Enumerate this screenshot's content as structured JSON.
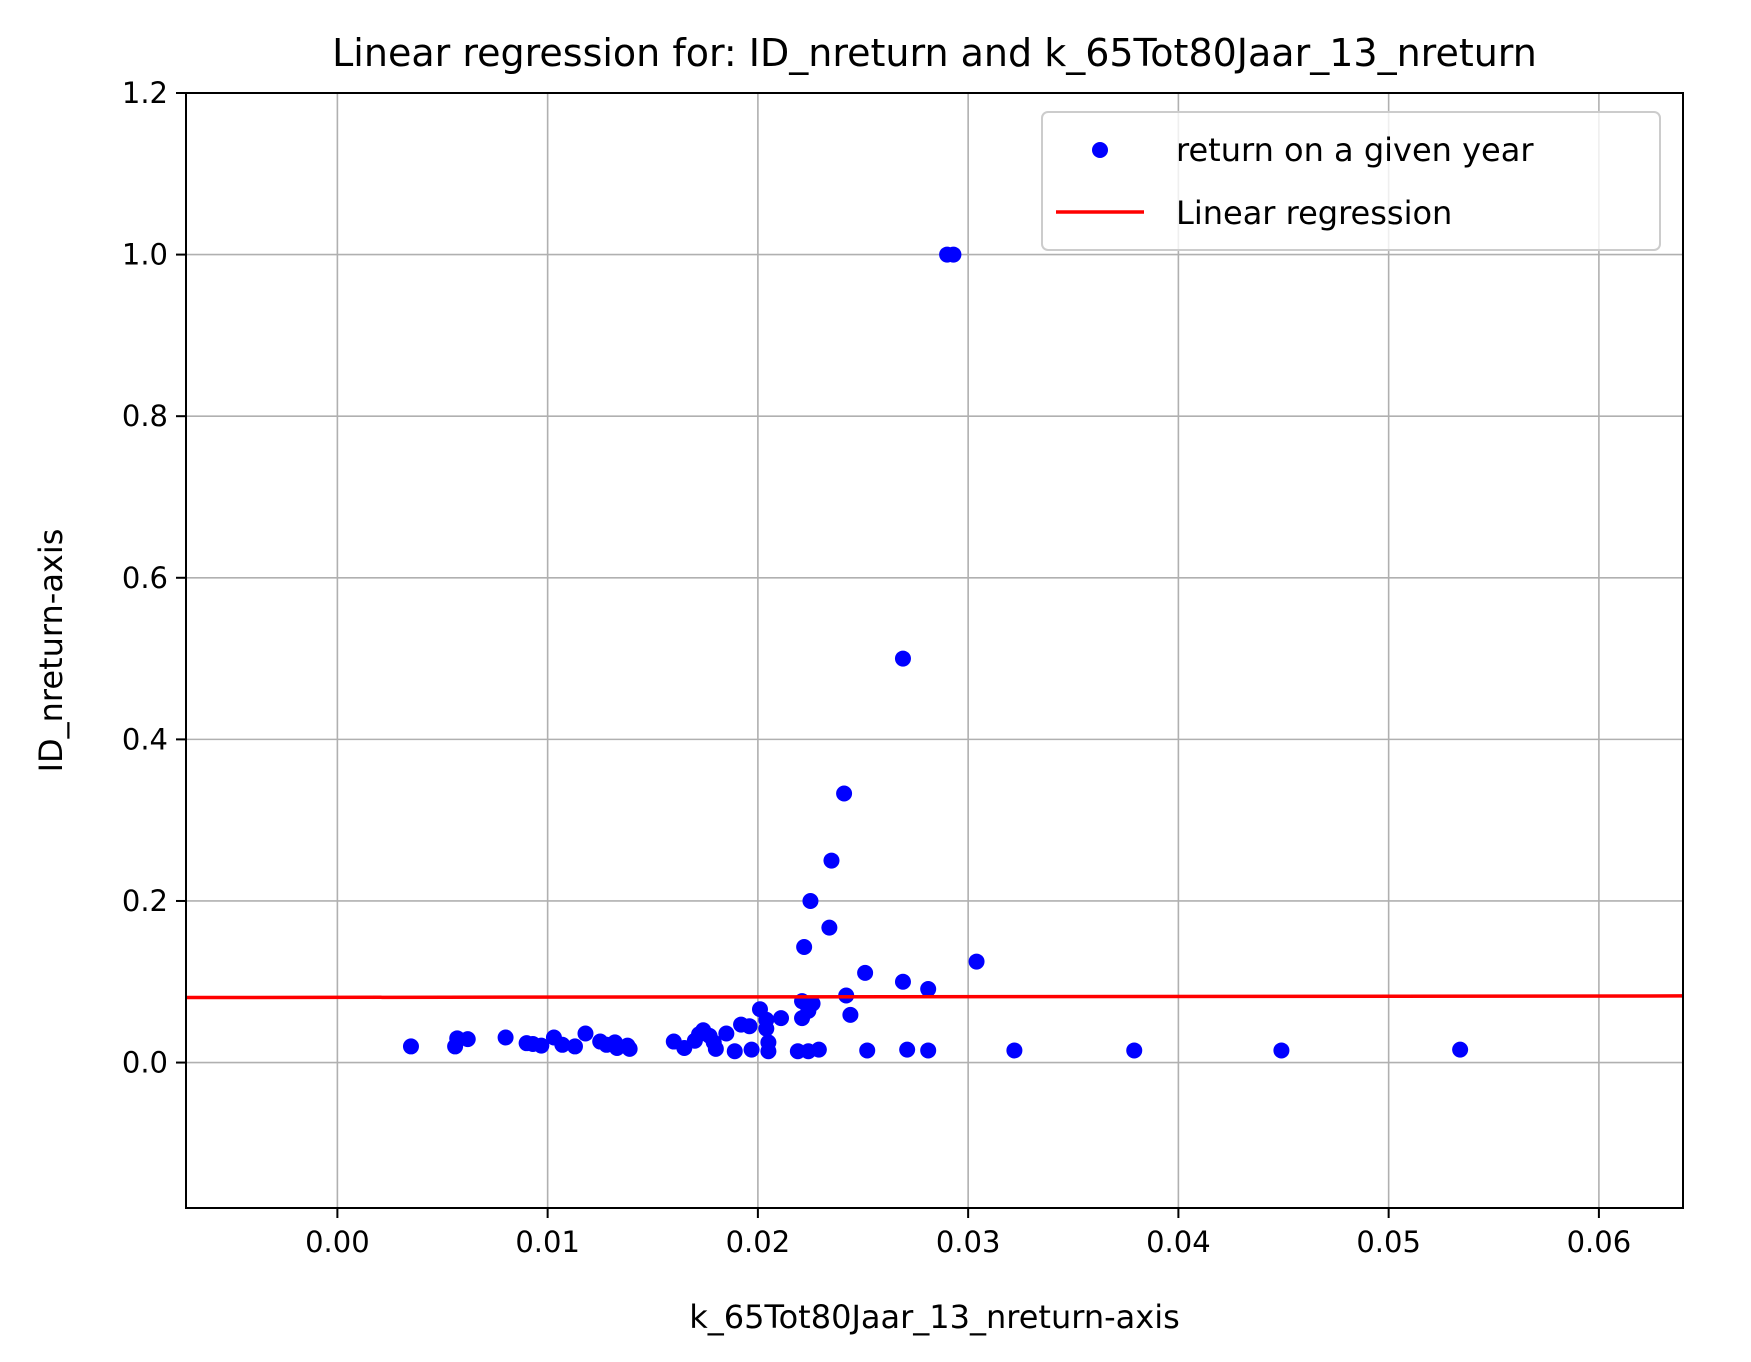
{
  "chart_data": {
    "type": "scatter",
    "title": "Linear regression for: ID_nreturn and k_65Tot80Jaar_13_nreturn",
    "xlabel": "k_65Tot80Jaar_13_nreturn-axis",
    "ylabel": "ID_nreturn-axis",
    "xlim": [
      -0.0072,
      0.064
    ],
    "ylim": [
      -0.18,
      1.2
    ],
    "x_ticks": [
      0.0,
      0.01,
      0.02,
      0.03,
      0.04,
      0.05,
      0.06
    ],
    "x_tick_labels": [
      "0.00",
      "0.01",
      "0.02",
      "0.03",
      "0.04",
      "0.05",
      "0.06"
    ],
    "y_ticks": [
      0.0,
      0.2,
      0.4,
      0.6,
      0.8,
      1.0,
      1.2
    ],
    "y_tick_labels": [
      "0.0",
      "0.2",
      "0.4",
      "0.6",
      "0.8",
      "1.0",
      "1.2"
    ],
    "grid": true,
    "legend_position": "top-right",
    "series": [
      {
        "name": "return on a given year",
        "kind": "scatter",
        "color": "#0000ff",
        "points": [
          [
            0.0035,
            0.02
          ],
          [
            0.0056,
            0.02
          ],
          [
            0.0057,
            0.03
          ],
          [
            0.0062,
            0.029
          ],
          [
            0.008,
            0.031
          ],
          [
            0.009,
            0.024
          ],
          [
            0.0093,
            0.023
          ],
          [
            0.0097,
            0.021
          ],
          [
            0.0103,
            0.031
          ],
          [
            0.0107,
            0.022
          ],
          [
            0.0113,
            0.02
          ],
          [
            0.0118,
            0.036
          ],
          [
            0.0125,
            0.026
          ],
          [
            0.0128,
            0.022
          ],
          [
            0.0132,
            0.025
          ],
          [
            0.0133,
            0.018
          ],
          [
            0.0138,
            0.021
          ],
          [
            0.0139,
            0.017
          ],
          [
            0.016,
            0.026
          ],
          [
            0.0165,
            0.018
          ],
          [
            0.017,
            0.027
          ],
          [
            0.0172,
            0.035
          ],
          [
            0.0174,
            0.04
          ],
          [
            0.0177,
            0.033
          ],
          [
            0.0179,
            0.025
          ],
          [
            0.018,
            0.017
          ],
          [
            0.0185,
            0.036
          ],
          [
            0.0189,
            0.014
          ],
          [
            0.0192,
            0.047
          ],
          [
            0.0196,
            0.045
          ],
          [
            0.0197,
            0.016
          ],
          [
            0.0201,
            0.066
          ],
          [
            0.0204,
            0.053
          ],
          [
            0.0204,
            0.042
          ],
          [
            0.0205,
            0.025
          ],
          [
            0.0205,
            0.014
          ],
          [
            0.0211,
            0.055
          ],
          [
            0.0219,
            0.014
          ],
          [
            0.0221,
            0.076
          ],
          [
            0.0221,
            0.055
          ],
          [
            0.0222,
            0.143
          ],
          [
            0.0224,
            0.064
          ],
          [
            0.0224,
            0.014
          ],
          [
            0.0225,
            0.2
          ],
          [
            0.0226,
            0.073
          ],
          [
            0.0229,
            0.016
          ],
          [
            0.0234,
            0.167
          ],
          [
            0.0235,
            0.25
          ],
          [
            0.0241,
            0.333
          ],
          [
            0.0242,
            0.083
          ],
          [
            0.0244,
            0.059
          ],
          [
            0.0251,
            0.111
          ],
          [
            0.0252,
            0.015
          ],
          [
            0.0269,
            0.1
          ],
          [
            0.0269,
            0.5
          ],
          [
            0.0271,
            0.016
          ],
          [
            0.0281,
            0.091
          ],
          [
            0.0281,
            0.015
          ],
          [
            0.029,
            1.0
          ],
          [
            0.0293,
            1.0
          ],
          [
            0.0304,
            0.125
          ],
          [
            0.0322,
            0.015
          ],
          [
            0.0379,
            0.015
          ],
          [
            0.0449,
            0.015
          ],
          [
            0.0534,
            0.016
          ]
        ]
      },
      {
        "name": "Linear regression",
        "kind": "line",
        "color": "#ff0000",
        "points": [
          [
            -0.0072,
            0.0805
          ],
          [
            0.064,
            0.0825
          ]
        ]
      }
    ]
  }
}
